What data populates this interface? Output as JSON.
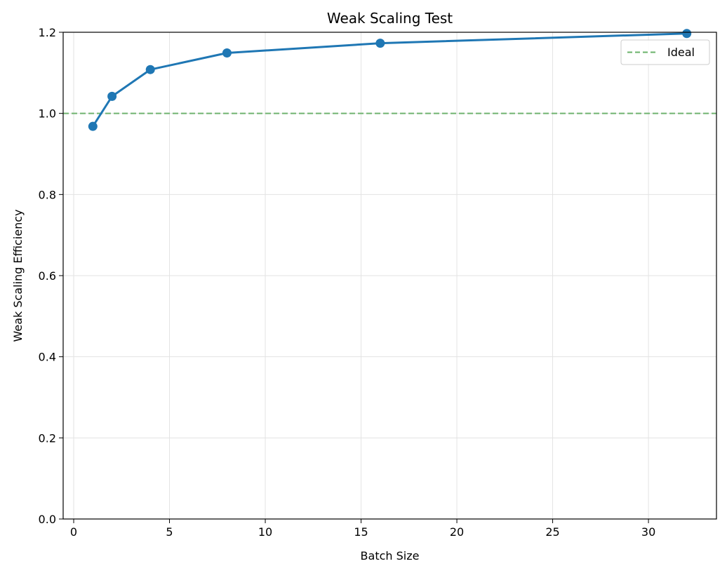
{
  "chart_data": {
    "type": "line",
    "title": "Weak Scaling Test",
    "xlabel": "Batch Size",
    "ylabel": "Weak Scaling Efficiency",
    "xlim": [
      -0.55,
      33.55
    ],
    "ylim": [
      0,
      1.2
    ],
    "xticks": [
      0,
      5,
      10,
      15,
      20,
      25,
      30
    ],
    "yticks": [
      0.0,
      0.2,
      0.4,
      0.6,
      0.8,
      1.0,
      1.2
    ],
    "xtick_labels": [
      "0",
      "5",
      "10",
      "15",
      "20",
      "25",
      "30"
    ],
    "ytick_labels": [
      "0.0",
      "0.2",
      "0.4",
      "0.6",
      "0.8",
      "1.0",
      "1.2"
    ],
    "grid": true,
    "legend_position": "top-right",
    "series": [
      {
        "x": [
          1,
          2,
          4,
          8,
          16,
          32
        ],
        "values": [
          0.968,
          1.042,
          1.108,
          1.149,
          1.173,
          1.197
        ],
        "color": "#1f77b4",
        "marker": "circle"
      }
    ],
    "reference_lines": [
      {
        "name": "Ideal",
        "y": 1.0,
        "style": "dashed",
        "color": "#6ab26a"
      }
    ]
  }
}
